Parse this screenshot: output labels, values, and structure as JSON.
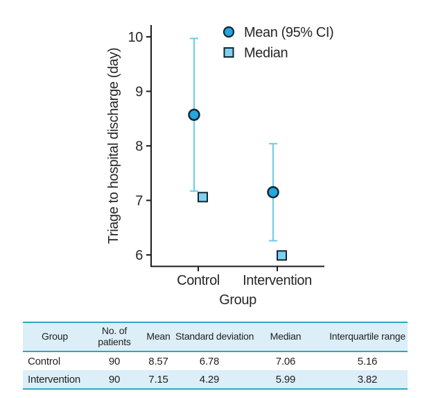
{
  "chart_data": {
    "type": "scatter",
    "title": "",
    "xlabel": "Group",
    "ylabel": "Triage to hospital discharge (day)",
    "ylim": [
      6,
      10
    ],
    "yticks": [
      6,
      7,
      8,
      9,
      10
    ],
    "grid": false,
    "legend_position": "top-right",
    "categories": [
      "Control",
      "Intervention"
    ],
    "legend": [
      {
        "label": "Mean (95% CI)",
        "marker": "circle"
      },
      {
        "label": "Median",
        "marker": "square"
      }
    ],
    "series": [
      {
        "name": "Mean (95% CI)",
        "type": "point-with-ci",
        "values": [
          8.57,
          7.15
        ],
        "ci_low": [
          7.17,
          6.26
        ],
        "ci_high": [
          9.97,
          8.04
        ]
      },
      {
        "name": "Median",
        "type": "point",
        "values": [
          7.06,
          5.99
        ]
      }
    ],
    "colors": {
      "mean_fill": "#24a7de",
      "median_fill": "#7bd2f0",
      "marker_stroke": "#142531",
      "ci_line": "#6ccaec",
      "axis": "#1c1c1c",
      "text": "#262626"
    }
  },
  "table": {
    "headers": [
      "Group",
      "No. of patients",
      "Mean",
      "Standard deviation",
      "Median",
      "Interquartile range"
    ],
    "rows": [
      [
        "Control",
        "90",
        "8.57",
        "6.78",
        "7.06",
        "5.16"
      ],
      [
        "Intervention",
        "90",
        "7.15",
        "4.29",
        "5.99",
        "3.82"
      ]
    ],
    "colors": {
      "rule": "#2ea6c3",
      "band": "#dceef7"
    }
  }
}
